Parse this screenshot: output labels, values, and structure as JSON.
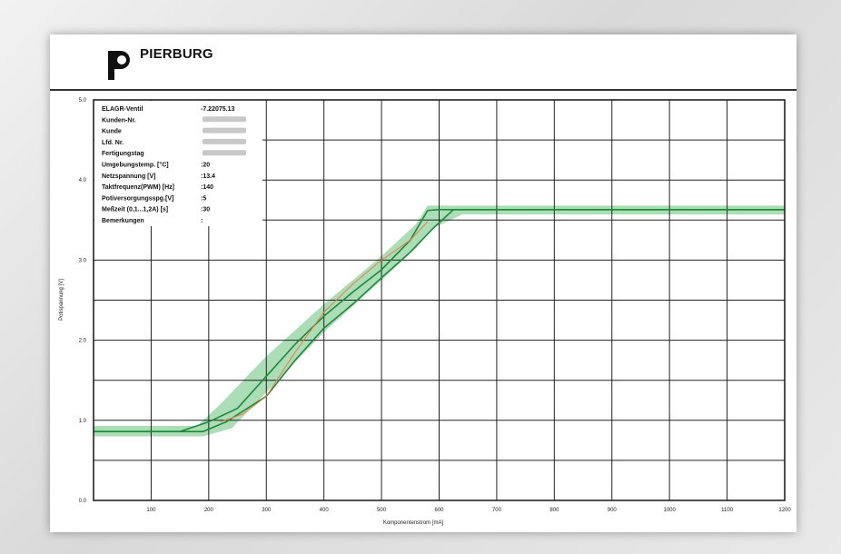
{
  "brand": {
    "name": "PIERBURG"
  },
  "colors": {
    "band": "#8fd19e",
    "curve": "#1e8a3a",
    "ref_curve": "#f07a4a",
    "grid": "#222222"
  },
  "chart_data": {
    "type": "line",
    "xlabel": "Komponentenstrom [mA]",
    "ylabel": "Poti­spannung [V]",
    "xlim": [
      0,
      1200
    ],
    "ylim": [
      0,
      5
    ],
    "xticks": [
      100,
      200,
      300,
      400,
      500,
      600,
      700,
      800,
      900,
      1000,
      1100,
      1200
    ],
    "yticks": [
      0.0,
      1.0,
      2.0,
      3.0,
      4.0,
      5.0
    ],
    "xtick_labels": [
      "100",
      "200",
      "300",
      "400",
      "500",
      "600",
      "700",
      "800",
      "900",
      "1000",
      "1100",
      "1200"
    ],
    "ytick_labels": [
      "0.0",
      "1.0",
      "2.0",
      "3.0",
      "4.0",
      "5.0"
    ],
    "grid": true,
    "info_table": [
      {
        "label": "ELAGR-Ventil",
        "value": "-7.22075.13"
      },
      {
        "label": "Kunden-Nr.",
        "value": ""
      },
      {
        "label": "Kunde",
        "value": ""
      },
      {
        "label": "Lfd. Nr.",
        "value": ""
      },
      {
        "label": "Fertigungstag",
        "value": ""
      },
      {
        "label": "Umgebungstemp. [°C]",
        "value": ":20"
      },
      {
        "label": "Netzspannung  [V]",
        "value": ":13.4"
      },
      {
        "label": "Taktfrequenz(PWM) [Hz]",
        "value": ":140"
      },
      {
        "label": "Potiversorgungsspg.[V]",
        "value": ":5"
      },
      {
        "label": "Meßzeit (0,1...1,2A) [s]",
        "value": ":30"
      },
      {
        "label": "Bemerkungen",
        "value": ":"
      }
    ],
    "tolerance_band": {
      "upper": [
        [
          0,
          0.93
        ],
        [
          180,
          0.93
        ],
        [
          220,
          1.2
        ],
        [
          300,
          1.8
        ],
        [
          400,
          2.45
        ],
        [
          500,
          3.05
        ],
        [
          560,
          3.45
        ],
        [
          580,
          3.68
        ],
        [
          640,
          3.68
        ],
        [
          1200,
          3.68
        ]
      ],
      "lower": [
        [
          0,
          0.8
        ],
        [
          190,
          0.8
        ],
        [
          240,
          0.9
        ],
        [
          300,
          1.35
        ],
        [
          400,
          2.1
        ],
        [
          500,
          2.75
        ],
        [
          560,
          3.15
        ],
        [
          590,
          3.4
        ],
        [
          640,
          3.57
        ],
        [
          1200,
          3.57
        ]
      ]
    },
    "series": [
      {
        "values": [
          [
            0,
            0.86
          ],
          [
            150,
            0.86
          ],
          [
            200,
            0.98
          ],
          [
            250,
            1.15
          ],
          [
            300,
            1.55
          ],
          [
            350,
            1.95
          ],
          [
            400,
            2.3
          ],
          [
            450,
            2.6
          ],
          [
            500,
            2.88
          ],
          [
            550,
            3.25
          ],
          [
            580,
            3.62
          ],
          [
            600,
            3.63
          ],
          [
            1200,
            3.63
          ]
        ]
      },
      {
        "values": [
          [
            0,
            0.86
          ],
          [
            190,
            0.86
          ],
          [
            230,
            0.98
          ],
          [
            300,
            1.3
          ],
          [
            350,
            1.75
          ],
          [
            400,
            2.15
          ],
          [
            450,
            2.45
          ],
          [
            500,
            2.78
          ],
          [
            550,
            3.1
          ],
          [
            590,
            3.4
          ],
          [
            625,
            3.63
          ],
          [
            1200,
            3.63
          ]
        ]
      },
      {
        "values": [
          [
            220,
            0.98
          ],
          [
            260,
            1.08
          ],
          [
            300,
            1.3
          ],
          [
            350,
            1.85
          ],
          [
            400,
            2.35
          ],
          [
            450,
            2.7
          ],
          [
            500,
            3.0
          ],
          [
            550,
            3.25
          ],
          [
            580,
            3.48
          ]
        ]
      }
    ]
  }
}
